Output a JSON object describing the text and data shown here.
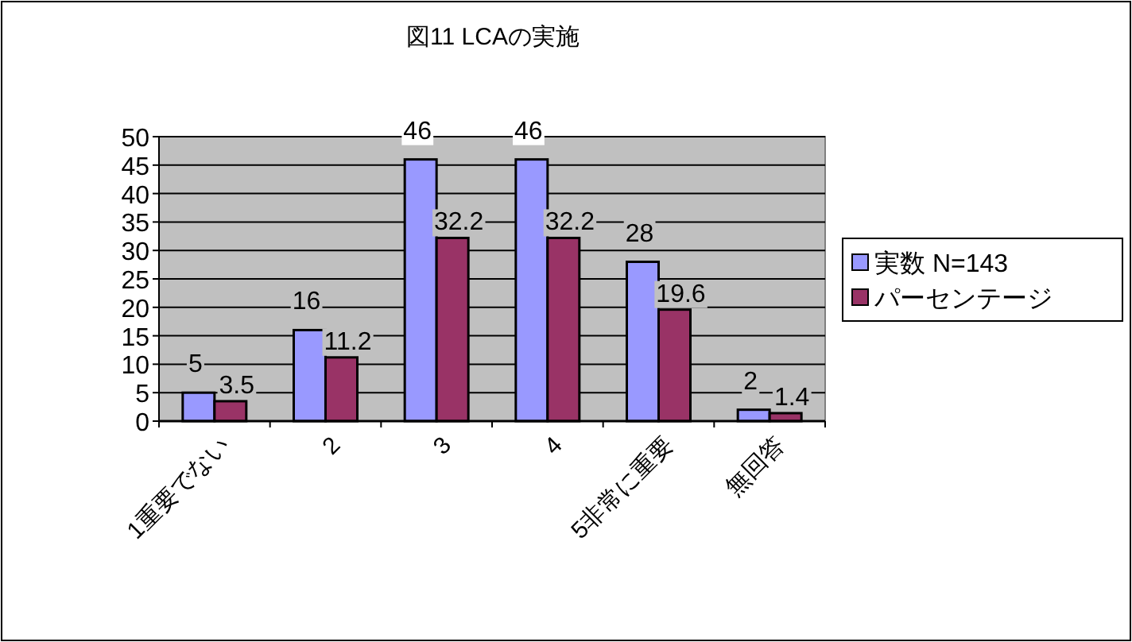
{
  "chart_data": {
    "type": "bar",
    "title": "図11  LCAの実施",
    "categories": [
      "1重要でない",
      "2",
      "3",
      "4",
      "5非常に重要",
      "無回答"
    ],
    "series": [
      {
        "name": "実数  N=143",
        "color": "#9999ff",
        "values": [
          5,
          16,
          46,
          46,
          28,
          2
        ]
      },
      {
        "name": "パーセンテージ",
        "color": "#993366",
        "values": [
          3.5,
          11.2,
          32.2,
          32.2,
          19.6,
          1.4
        ]
      }
    ],
    "ylim": [
      0,
      50
    ],
    "yticks": [
      0,
      5,
      10,
      15,
      20,
      25,
      30,
      35,
      40,
      45,
      50
    ],
    "grid": "y",
    "legend": "right",
    "data_labels": true
  }
}
